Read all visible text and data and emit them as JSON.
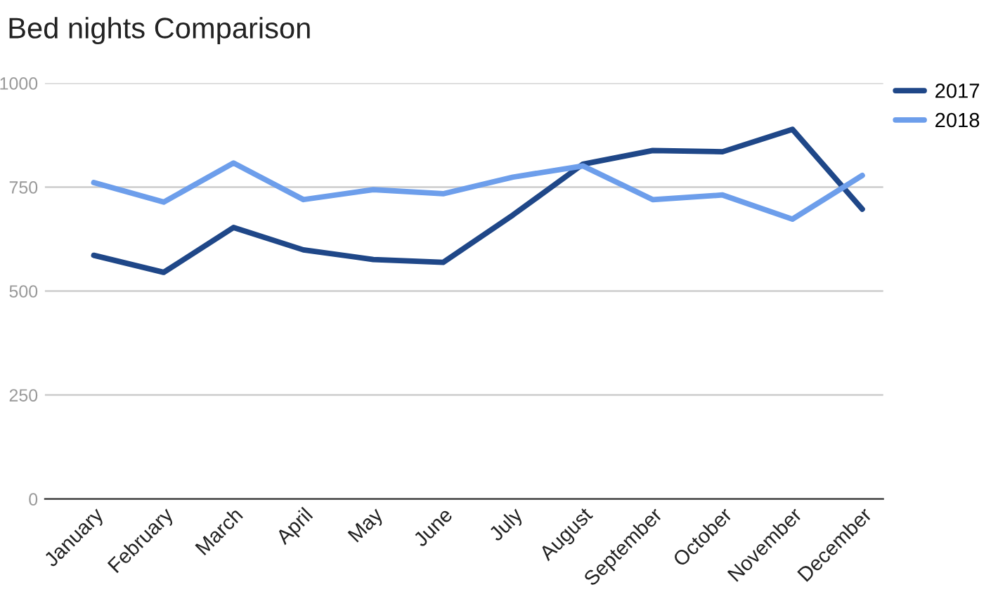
{
  "chart_data": {
    "type": "line",
    "title": "Bed nights Comparison",
    "categories": [
      "January",
      "February",
      "March",
      "April",
      "May",
      "June",
      "July",
      "August",
      "September",
      "October",
      "November",
      "December"
    ],
    "series": [
      {
        "name": "2017",
        "color": "#1f4788",
        "values": [
          586,
          545,
          653,
          599,
          576,
          569,
          683,
          805,
          838,
          835,
          889,
          697
        ]
      },
      {
        "name": "2018",
        "color": "#6d9eeb",
        "values": [
          761,
          714,
          808,
          720,
          744,
          734,
          774,
          801,
          720,
          731,
          673,
          778
        ]
      }
    ],
    "ylim": [
      0,
      1000
    ],
    "yticks": [
      0,
      250,
      500,
      750,
      1000
    ],
    "grid": "y",
    "legend": "top right",
    "marker": "none",
    "line_style": "solid"
  }
}
